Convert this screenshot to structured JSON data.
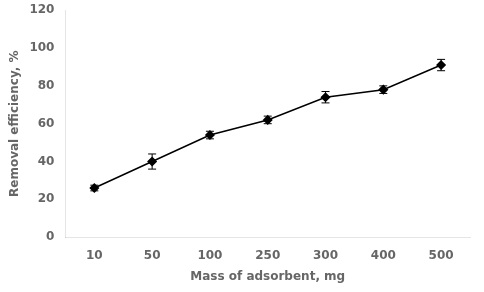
{
  "chart_data": {
    "type": "line",
    "categories": [
      "10",
      "50",
      "100",
      "250",
      "300",
      "400",
      "500"
    ],
    "values": [
      26,
      40,
      54,
      62,
      74,
      78,
      91
    ],
    "errors": [
      1.5,
      4,
      2,
      2,
      3,
      2,
      3
    ],
    "xlabel": "Mass of adsorbent, mg",
    "ylabel": "Removal efficiency, %",
    "ylim": [
      0,
      120
    ],
    "yticks": [
      0,
      20,
      40,
      60,
      80,
      100,
      120
    ],
    "color": "black",
    "marker": "diamond",
    "grid": false
  }
}
